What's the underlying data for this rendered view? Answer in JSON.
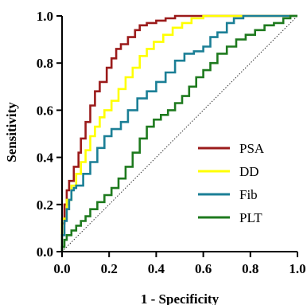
{
  "chart_data": {
    "type": "line",
    "xlabel": "1 - Specificity",
    "ylabel": "Sensitivity",
    "xlim": [
      0,
      1
    ],
    "ylim": [
      0,
      1
    ],
    "xticks": [
      "0.0",
      "0.2",
      "0.4",
      "0.6",
      "0.8",
      "1.0"
    ],
    "yticks": [
      "0.0",
      "0.2",
      "0.4",
      "0.6",
      "0.8",
      "1.0"
    ],
    "legend_position": "bottom-right",
    "reference_line": {
      "style": "dotted",
      "from": [
        0,
        0
      ],
      "to": [
        1,
        1
      ]
    },
    "series": [
      {
        "name": "PSA",
        "color": "#9b1b1b",
        "points": [
          [
            0,
            0
          ],
          [
            0,
            0.05
          ],
          [
            0.01,
            0.12
          ],
          [
            0.02,
            0.2
          ],
          [
            0.03,
            0.26
          ],
          [
            0.05,
            0.3
          ],
          [
            0.07,
            0.36
          ],
          [
            0.08,
            0.42
          ],
          [
            0.1,
            0.48
          ],
          [
            0.12,
            0.55
          ],
          [
            0.14,
            0.62
          ],
          [
            0.16,
            0.68
          ],
          [
            0.19,
            0.72
          ],
          [
            0.21,
            0.78
          ],
          [
            0.23,
            0.82
          ],
          [
            0.25,
            0.86
          ],
          [
            0.28,
            0.88
          ],
          [
            0.31,
            0.91
          ],
          [
            0.33,
            0.94
          ],
          [
            0.36,
            0.96
          ],
          [
            0.4,
            0.97
          ],
          [
            0.44,
            0.98
          ],
          [
            0.48,
            0.99
          ],
          [
            0.52,
            1.0
          ],
          [
            1,
            1.0
          ]
        ]
      },
      {
        "name": "DD",
        "color": "#ffff00",
        "points": [
          [
            0,
            0
          ],
          [
            0,
            0.07
          ],
          [
            0.02,
            0.14
          ],
          [
            0.04,
            0.22
          ],
          [
            0.06,
            0.28
          ],
          [
            0.08,
            0.33
          ],
          [
            0.1,
            0.38
          ],
          [
            0.12,
            0.43
          ],
          [
            0.14,
            0.49
          ],
          [
            0.16,
            0.53
          ],
          [
            0.18,
            0.57
          ],
          [
            0.21,
            0.6
          ],
          [
            0.24,
            0.64
          ],
          [
            0.27,
            0.69
          ],
          [
            0.3,
            0.74
          ],
          [
            0.33,
            0.78
          ],
          [
            0.36,
            0.83
          ],
          [
            0.39,
            0.86
          ],
          [
            0.43,
            0.89
          ],
          [
            0.47,
            0.92
          ],
          [
            0.51,
            0.95
          ],
          [
            0.55,
            0.97
          ],
          [
            0.6,
            0.99
          ],
          [
            0.64,
            1.0
          ],
          [
            1,
            1.0
          ]
        ]
      },
      {
        "name": "Fib",
        "color": "#1b7f96",
        "points": [
          [
            0,
            0
          ],
          [
            0.01,
            0.07
          ],
          [
            0.02,
            0.13
          ],
          [
            0.03,
            0.18
          ],
          [
            0.04,
            0.22
          ],
          [
            0.05,
            0.26
          ],
          [
            0.06,
            0.27
          ],
          [
            0.09,
            0.28
          ],
          [
            0.12,
            0.33
          ],
          [
            0.15,
            0.38
          ],
          [
            0.18,
            0.44
          ],
          [
            0.21,
            0.49
          ],
          [
            0.25,
            0.52
          ],
          [
            0.28,
            0.55
          ],
          [
            0.32,
            0.6
          ],
          [
            0.36,
            0.65
          ],
          [
            0.4,
            0.68
          ],
          [
            0.44,
            0.72
          ],
          [
            0.48,
            0.76
          ],
          [
            0.52,
            0.81
          ],
          [
            0.56,
            0.84
          ],
          [
            0.6,
            0.85
          ],
          [
            0.63,
            0.87
          ],
          [
            0.66,
            0.91
          ],
          [
            0.7,
            0.93
          ],
          [
            0.73,
            0.97
          ],
          [
            0.77,
            0.99
          ],
          [
            0.82,
            1.0
          ],
          [
            1,
            1.0
          ]
        ]
      },
      {
        "name": "PLT",
        "color": "#1e7a1e",
        "points": [
          [
            0,
            0
          ],
          [
            0.01,
            0.02
          ],
          [
            0.02,
            0.05
          ],
          [
            0.04,
            0.07
          ],
          [
            0.06,
            0.09
          ],
          [
            0.08,
            0.11
          ],
          [
            0.1,
            0.13
          ],
          [
            0.12,
            0.15
          ],
          [
            0.15,
            0.18
          ],
          [
            0.18,
            0.21
          ],
          [
            0.21,
            0.24
          ],
          [
            0.24,
            0.27
          ],
          [
            0.27,
            0.31
          ],
          [
            0.3,
            0.36
          ],
          [
            0.33,
            0.42
          ],
          [
            0.36,
            0.48
          ],
          [
            0.39,
            0.53
          ],
          [
            0.42,
            0.56
          ],
          [
            0.45,
            0.58
          ],
          [
            0.48,
            0.6
          ],
          [
            0.51,
            0.63
          ],
          [
            0.54,
            0.66
          ],
          [
            0.57,
            0.7
          ],
          [
            0.6,
            0.74
          ],
          [
            0.63,
            0.77
          ],
          [
            0.66,
            0.8
          ],
          [
            0.7,
            0.84
          ],
          [
            0.74,
            0.87
          ],
          [
            0.78,
            0.9
          ],
          [
            0.82,
            0.92
          ],
          [
            0.86,
            0.94
          ],
          [
            0.9,
            0.96
          ],
          [
            0.94,
            0.97
          ],
          [
            0.97,
            0.99
          ],
          [
            1,
            1.0
          ]
        ]
      }
    ]
  }
}
